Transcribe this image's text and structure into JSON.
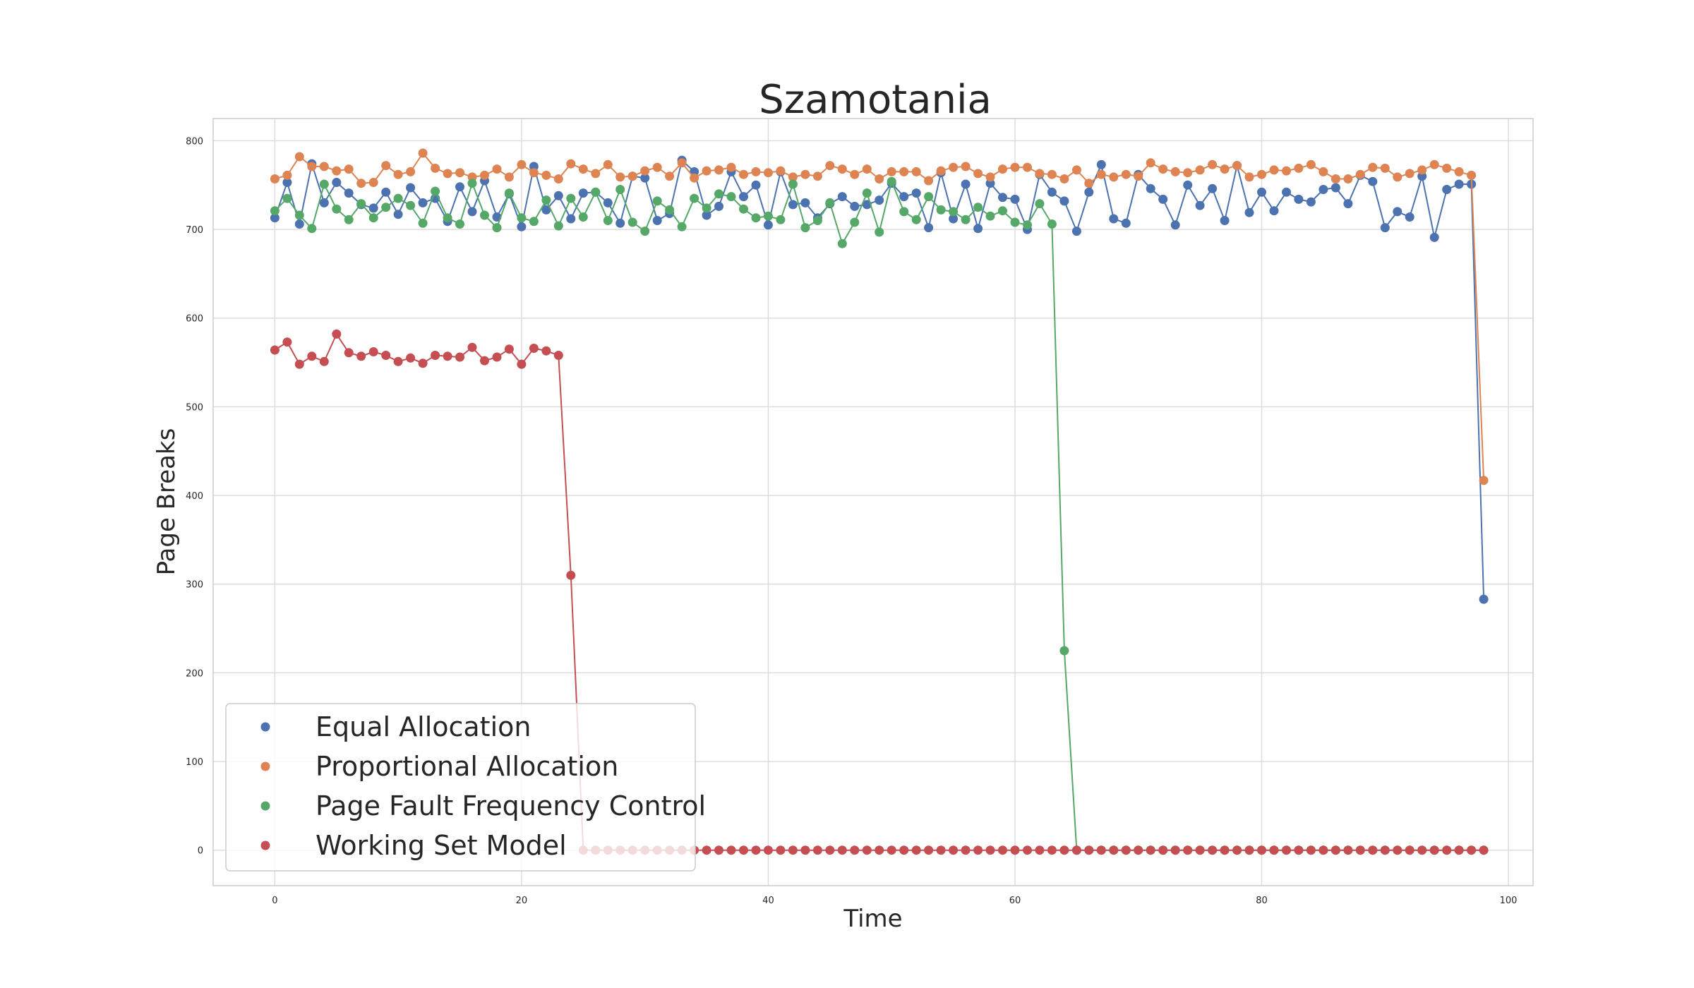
{
  "chart_data": {
    "type": "line",
    "title": "Szamotania",
    "xlabel": "Time",
    "ylabel": "Page Breaks",
    "xlim": [
      -5,
      102
    ],
    "ylim": [
      -40,
      825
    ],
    "xticks": [
      0,
      20,
      40,
      60,
      80,
      100
    ],
    "yticks": [
      0,
      100,
      200,
      300,
      400,
      500,
      600,
      700,
      800
    ],
    "grid": true,
    "legend_position": "lower-left",
    "x": [
      0,
      1,
      2,
      3,
      4,
      5,
      6,
      7,
      8,
      9,
      10,
      11,
      12,
      13,
      14,
      15,
      16,
      17,
      18,
      19,
      20,
      21,
      22,
      23,
      24,
      25,
      26,
      27,
      28,
      29,
      30,
      31,
      32,
      33,
      34,
      35,
      36,
      37,
      38,
      39,
      40,
      41,
      42,
      43,
      44,
      45,
      46,
      47,
      48,
      49,
      50,
      51,
      52,
      53,
      54,
      55,
      56,
      57,
      58,
      59,
      60,
      61,
      62,
      63,
      64,
      65,
      66,
      67,
      68,
      69,
      70,
      71,
      72,
      73,
      74,
      75,
      76,
      77,
      78,
      79,
      80,
      81,
      82,
      83,
      84,
      85,
      86,
      87,
      88,
      89,
      90,
      91,
      92,
      93,
      94,
      95,
      96,
      97,
      98
    ],
    "series": [
      {
        "name": "Equal Allocation",
        "color": "#4c72b0",
        "values": [
          713,
          753,
          706,
          774,
          730,
          753,
          741,
          728,
          724,
          742,
          717,
          747,
          730,
          735,
          709,
          748,
          720,
          755,
          714,
          740,
          703,
          771,
          722,
          738,
          712,
          741,
          742,
          730,
          707,
          760,
          758,
          710,
          718,
          778,
          765,
          716,
          726,
          765,
          737,
          750,
          705,
          765,
          728,
          730,
          713,
          729,
          737,
          726,
          728,
          733,
          752,
          737,
          741,
          702,
          764,
          712,
          751,
          701,
          752,
          736,
          734,
          700,
          762,
          742,
          732,
          698,
          742,
          773,
          712,
          707,
          762,
          746,
          734,
          705,
          750,
          727,
          746,
          710,
          772,
          719,
          742,
          721,
          742,
          734,
          731,
          745,
          747,
          729,
          761,
          754,
          702,
          720,
          714,
          760,
          691,
          745,
          751,
          751,
          283
        ]
      },
      {
        "name": "Proportional Allocation",
        "color": "#dd8452",
        "values": [
          757,
          761,
          782,
          771,
          771,
          766,
          768,
          752,
          753,
          772,
          762,
          765,
          786,
          769,
          763,
          764,
          759,
          761,
          768,
          759,
          773,
          764,
          761,
          757,
          774,
          768,
          763,
          773,
          759,
          760,
          766,
          770,
          760,
          775,
          758,
          766,
          767,
          770,
          762,
          765,
          764,
          766,
          759,
          762,
          760,
          772,
          768,
          762,
          768,
          757,
          765,
          765,
          765,
          755,
          766,
          770,
          771,
          763,
          759,
          768,
          770,
          770,
          763,
          762,
          757,
          767,
          752,
          762,
          759,
          762,
          760,
          775,
          768,
          765,
          764,
          767,
          773,
          768,
          772,
          759,
          762,
          767,
          766,
          769,
          773,
          765,
          757,
          757,
          762,
          770,
          769,
          759,
          763,
          767,
          773,
          769,
          765,
          761,
          417
        ]
      },
      {
        "name": "Page Fault Frequency Control",
        "color": "#55a868",
        "values": [
          721,
          735,
          716,
          701,
          751,
          723,
          711,
          729,
          713,
          725,
          735,
          727,
          707,
          743,
          713,
          706,
          752,
          716,
          702,
          741,
          713,
          709,
          733,
          704,
          735,
          714,
          742,
          710,
          745,
          708,
          698,
          732,
          722,
          703,
          735,
          724,
          740,
          737,
          723,
          713,
          715,
          711,
          751,
          702,
          710,
          730,
          684,
          708,
          741,
          697,
          754,
          720,
          711,
          737,
          722,
          720,
          711,
          725,
          715,
          721,
          708,
          705,
          729,
          706,
          225,
          0,
          0,
          0,
          0,
          0,
          0,
          0,
          0,
          0,
          0,
          0,
          0,
          0,
          0,
          0,
          0,
          0,
          0,
          0,
          0,
          0,
          0,
          0,
          0,
          0,
          0,
          0,
          0,
          0,
          0,
          0,
          0,
          0,
          0
        ]
      },
      {
        "name": "Working Set Model",
        "color": "#c44e52",
        "values": [
          564,
          573,
          548,
          557,
          551,
          582,
          561,
          557,
          562,
          558,
          551,
          555,
          549,
          558,
          557,
          556,
          567,
          552,
          556,
          565,
          548,
          566,
          563,
          558,
          310,
          0,
          0,
          0,
          0,
          0,
          0,
          0,
          0,
          0,
          0,
          0,
          0,
          0,
          0,
          0,
          0,
          0,
          0,
          0,
          0,
          0,
          0,
          0,
          0,
          0,
          0,
          0,
          0,
          0,
          0,
          0,
          0,
          0,
          0,
          0,
          0,
          0,
          0,
          0,
          0,
          0,
          0,
          0,
          0,
          0,
          0,
          0,
          0,
          0,
          0,
          0,
          0,
          0,
          0,
          0,
          0,
          0,
          0,
          0,
          0,
          0,
          0,
          0,
          0,
          0,
          0,
          0,
          0,
          0,
          0,
          0,
          0,
          0,
          0
        ]
      }
    ]
  }
}
